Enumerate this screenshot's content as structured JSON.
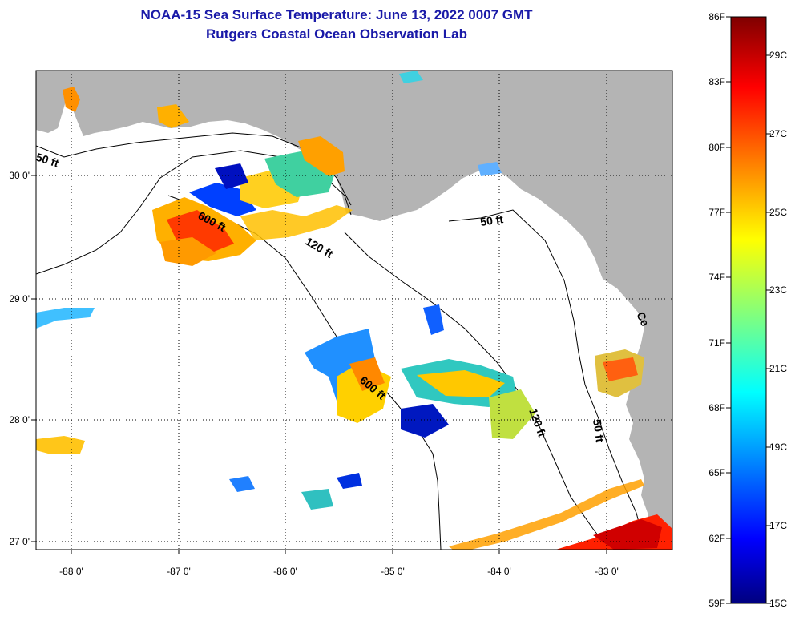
{
  "title": {
    "line1": "NOAA-15 Sea Surface Temperature:  June 13, 2022 0007 GMT",
    "line2": "Rutgers Coastal Ocean Observation Lab"
  },
  "map": {
    "lat_labels": [
      "30 0'",
      "29 0'",
      "28 0'",
      "27 0'"
    ],
    "lat_values": [
      30,
      29,
      28,
      27
    ],
    "lon_labels": [
      "-88 0'",
      "-87 0'",
      "-86 0'",
      "-85 0'",
      "-84 0'",
      "-83 0'"
    ],
    "lon_values": [
      -88,
      -87,
      -86,
      -85,
      -84,
      -83
    ],
    "contour_labels": [
      "50 ft",
      "600 ft",
      "120 ft",
      "50 ft",
      "600 ft",
      "120 ft",
      "50 ft",
      "Ce"
    ]
  },
  "colorbar": {
    "f_labels": [
      "86F",
      "83F",
      "80F",
      "77F",
      "74F",
      "71F",
      "68F",
      "65F",
      "62F",
      "59F"
    ],
    "c_labels": [
      "29C",
      "27C",
      "25C",
      "23C",
      "21C",
      "19C",
      "17C",
      "15C"
    ]
  },
  "colors": {
    "land": "#b4b4b4",
    "ocean": "#ffffff",
    "title": "#1a1aa8"
  }
}
